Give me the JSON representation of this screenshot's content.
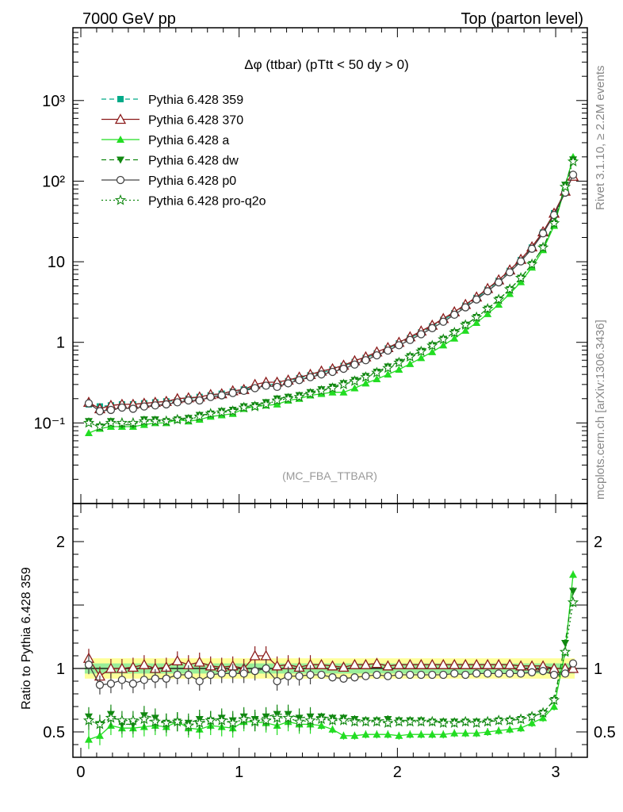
{
  "header": {
    "left": "7000 GeV pp",
    "right": "Top (parton level)"
  },
  "side_labels": {
    "rivet": "Rivet 3.1.10, ≥ 2.2M events",
    "mcplots": "mcplots.cern.ch [arXiv:1306.3436]"
  },
  "chart_data": [
    {
      "type": "line",
      "title": "Δφ (ttbar) (pTtt < 50 dy > 0)",
      "subtitle": "(MC_FBA_TTBAR)",
      "xlabel": "",
      "ylabel": "",
      "yscale": "log",
      "xlim": [
        -0.05,
        3.2
      ],
      "ylim": [
        0.01,
        8000
      ],
      "grid": false,
      "legend": "top-left",
      "x_ticks": [
        "0",
        "1",
        "2",
        "3"
      ],
      "y_ticks": [
        "10⁻¹",
        "1",
        "10",
        "10²",
        "10³"
      ],
      "x": [
        0.05,
        0.12,
        0.19,
        0.26,
        0.33,
        0.4,
        0.47,
        0.54,
        0.61,
        0.68,
        0.75,
        0.82,
        0.89,
        0.96,
        1.03,
        1.1,
        1.17,
        1.24,
        1.31,
        1.38,
        1.45,
        1.52,
        1.59,
        1.66,
        1.73,
        1.8,
        1.87,
        1.94,
        2.01,
        2.08,
        2.15,
        2.22,
        2.29,
        2.36,
        2.43,
        2.5,
        2.57,
        2.64,
        2.71,
        2.78,
        2.85,
        2.92,
        2.99,
        3.06,
        3.11
      ],
      "series": [
        {
          "name": "Pythia 6.428 359",
          "color": "#00aa88",
          "marker": "square",
          "dash": "dashed",
          "values": [
            0.17,
            0.16,
            0.165,
            0.17,
            0.17,
            0.175,
            0.18,
            0.185,
            0.19,
            0.2,
            0.21,
            0.22,
            0.23,
            0.245,
            0.26,
            0.275,
            0.29,
            0.31,
            0.33,
            0.36,
            0.39,
            0.42,
            0.46,
            0.51,
            0.57,
            0.64,
            0.73,
            0.84,
            0.97,
            1.13,
            1.33,
            1.58,
            1.9,
            2.3,
            2.85,
            3.55,
            4.5,
            5.8,
            7.7,
            10.5,
            15,
            23,
            40,
            75,
            115
          ]
        },
        {
          "name": "Pythia 6.428 370",
          "color": "#8b1a1a",
          "marker": "open-triangle",
          "dash": "solid",
          "values": [
            0.18,
            0.15,
            0.165,
            0.17,
            0.17,
            0.175,
            0.18,
            0.185,
            0.2,
            0.205,
            0.21,
            0.225,
            0.23,
            0.25,
            0.26,
            0.3,
            0.32,
            0.32,
            0.34,
            0.37,
            0.4,
            0.44,
            0.47,
            0.52,
            0.59,
            0.66,
            0.76,
            0.86,
            1.0,
            1.17,
            1.38,
            1.63,
            1.97,
            2.39,
            2.95,
            3.65,
            4.65,
            5.95,
            7.9,
            10.7,
            15.3,
            23.5,
            40,
            75,
            115
          ]
        },
        {
          "name": "Pythia 6.428 a",
          "color": "#22dd22",
          "marker": "triangle",
          "dash": "solid",
          "values": [
            0.075,
            0.085,
            0.09,
            0.09,
            0.09,
            0.095,
            0.1,
            0.1,
            0.11,
            0.105,
            0.11,
            0.12,
            0.125,
            0.13,
            0.15,
            0.16,
            0.165,
            0.17,
            0.19,
            0.2,
            0.22,
            0.23,
            0.24,
            0.24,
            0.27,
            0.31,
            0.35,
            0.4,
            0.46,
            0.54,
            0.64,
            0.76,
            0.92,
            1.12,
            1.4,
            1.75,
            2.25,
            2.95,
            4.0,
            5.6,
            8.5,
            14,
            28,
            85,
            200
          ]
        },
        {
          "name": "Pythia 6.428 dw",
          "color": "#118811",
          "marker": "down-triangle",
          "dash": "dashed",
          "values": [
            0.105,
            0.09,
            0.105,
            0.095,
            0.095,
            0.11,
            0.11,
            0.105,
            0.11,
            0.115,
            0.125,
            0.13,
            0.14,
            0.145,
            0.16,
            0.165,
            0.18,
            0.2,
            0.21,
            0.22,
            0.24,
            0.26,
            0.28,
            0.31,
            0.34,
            0.38,
            0.43,
            0.5,
            0.57,
            0.67,
            0.78,
            0.92,
            1.1,
            1.33,
            1.65,
            2.05,
            2.6,
            3.4,
            4.55,
            6.3,
            9.3,
            15,
            30,
            90,
            185
          ]
        },
        {
          "name": "Pythia 6.428 p0",
          "color": "#444444",
          "marker": "open-circle",
          "dash": "solid",
          "values": [
            0.175,
            0.14,
            0.145,
            0.155,
            0.15,
            0.16,
            0.165,
            0.17,
            0.18,
            0.19,
            0.19,
            0.21,
            0.22,
            0.235,
            0.25,
            0.27,
            0.29,
            0.28,
            0.31,
            0.34,
            0.37,
            0.4,
            0.43,
            0.47,
            0.53,
            0.6,
            0.69,
            0.79,
            0.92,
            1.07,
            1.26,
            1.5,
            1.8,
            2.2,
            2.72,
            3.4,
            4.3,
            5.55,
            7.4,
            10.1,
            14.5,
            22.5,
            38,
            72,
            120
          ]
        },
        {
          "name": "Pythia 6.428 pro-q2o",
          "color": "#118811",
          "marker": "open-star",
          "dash": "dotted",
          "values": [
            0.1,
            0.09,
            0.1,
            0.1,
            0.1,
            0.105,
            0.105,
            0.105,
            0.11,
            0.11,
            0.12,
            0.13,
            0.135,
            0.14,
            0.155,
            0.16,
            0.17,
            0.19,
            0.2,
            0.21,
            0.23,
            0.25,
            0.27,
            0.3,
            0.33,
            0.37,
            0.42,
            0.48,
            0.56,
            0.66,
            0.77,
            0.91,
            1.09,
            1.32,
            1.64,
            2.04,
            2.6,
            3.4,
            4.55,
            6.3,
            9.3,
            15,
            30,
            85,
            175
          ]
        }
      ]
    },
    {
      "type": "line",
      "title": "",
      "xlabel": "",
      "ylabel": "Ratio to Pythia 6.428 359",
      "yscale": "linear",
      "xlim": [
        -0.05,
        3.2
      ],
      "ylim": [
        0.3,
        2.3
      ],
      "grid": false,
      "reference_line": 1.0,
      "band_inner": [
        0.96,
        1.04
      ],
      "band_outer": [
        0.92,
        1.08
      ],
      "x_ticks": [
        "0",
        "1",
        "2",
        "3"
      ],
      "y_ticks": [
        "0.5",
        "1",
        "2"
      ],
      "x": [
        0.05,
        0.12,
        0.19,
        0.26,
        0.33,
        0.4,
        0.47,
        0.54,
        0.61,
        0.68,
        0.75,
        0.82,
        0.89,
        0.96,
        1.03,
        1.1,
        1.17,
        1.24,
        1.31,
        1.38,
        1.45,
        1.52,
        1.59,
        1.66,
        1.73,
        1.8,
        1.87,
        1.94,
        2.01,
        2.08,
        2.15,
        2.22,
        2.29,
        2.36,
        2.43,
        2.5,
        2.57,
        2.64,
        2.71,
        2.78,
        2.85,
        2.92,
        2.99,
        3.06,
        3.11
      ],
      "series": [
        {
          "name": "Pythia 6.428 370",
          "values": [
            1.08,
            0.94,
            1.0,
            1.0,
            1.01,
            1.03,
            1.0,
            1.01,
            1.06,
            1.03,
            1.05,
            1.02,
            1.01,
            1.02,
            1.0,
            1.1,
            1.1,
            1.02,
            1.03,
            1.01,
            1.03,
            1.03,
            1.02,
            1.01,
            1.03,
            1.03,
            1.04,
            1.02,
            1.03,
            1.03,
            1.03,
            1.03,
            1.03,
            1.03,
            1.03,
            1.03,
            1.03,
            1.03,
            1.03,
            1.02,
            1.02,
            1.02,
            1.0,
            1.0,
            1.0
          ]
        },
        {
          "name": "Pythia 6.428 a",
          "values": [
            0.44,
            0.47,
            0.55,
            0.53,
            0.53,
            0.54,
            0.55,
            0.54,
            0.58,
            0.53,
            0.52,
            0.55,
            0.54,
            0.53,
            0.58,
            0.58,
            0.57,
            0.55,
            0.58,
            0.56,
            0.56,
            0.55,
            0.52,
            0.47,
            0.47,
            0.48,
            0.48,
            0.48,
            0.47,
            0.48,
            0.48,
            0.48,
            0.48,
            0.49,
            0.49,
            0.49,
            0.5,
            0.51,
            0.52,
            0.53,
            0.57,
            0.61,
            0.7,
            1.13,
            1.74
          ]
        },
        {
          "name": "Pythia 6.428 dw",
          "values": [
            0.62,
            0.56,
            0.64,
            0.56,
            0.56,
            0.63,
            0.61,
            0.57,
            0.58,
            0.57,
            0.6,
            0.59,
            0.61,
            0.59,
            0.62,
            0.6,
            0.62,
            0.64,
            0.64,
            0.61,
            0.62,
            0.62,
            0.61,
            0.61,
            0.6,
            0.59,
            0.59,
            0.6,
            0.59,
            0.59,
            0.59,
            0.58,
            0.58,
            0.58,
            0.58,
            0.58,
            0.58,
            0.59,
            0.59,
            0.6,
            0.62,
            0.65,
            0.75,
            1.2,
            1.61
          ]
        },
        {
          "name": "Pythia 6.428 p0",
          "values": [
            1.03,
            0.87,
            0.88,
            0.91,
            0.88,
            0.91,
            0.92,
            0.92,
            0.95,
            0.95,
            0.9,
            0.95,
            0.96,
            0.96,
            0.96,
            0.98,
            1.0,
            0.9,
            0.94,
            0.94,
            0.95,
            0.95,
            0.93,
            0.92,
            0.93,
            0.94,
            0.95,
            0.94,
            0.95,
            0.95,
            0.95,
            0.95,
            0.95,
            0.96,
            0.95,
            0.96,
            0.96,
            0.96,
            0.96,
            0.96,
            0.97,
            0.98,
            0.95,
            0.96,
            1.04
          ]
        },
        {
          "name": "Pythia 6.428 pro-q2o",
          "values": [
            0.59,
            0.56,
            0.61,
            0.59,
            0.59,
            0.6,
            0.58,
            0.57,
            0.58,
            0.55,
            0.57,
            0.59,
            0.59,
            0.57,
            0.6,
            0.58,
            0.59,
            0.61,
            0.61,
            0.58,
            0.59,
            0.6,
            0.59,
            0.59,
            0.58,
            0.58,
            0.58,
            0.57,
            0.58,
            0.58,
            0.58,
            0.58,
            0.57,
            0.57,
            0.58,
            0.57,
            0.58,
            0.59,
            0.59,
            0.6,
            0.62,
            0.65,
            0.75,
            1.13,
            1.52
          ]
        }
      ]
    }
  ]
}
